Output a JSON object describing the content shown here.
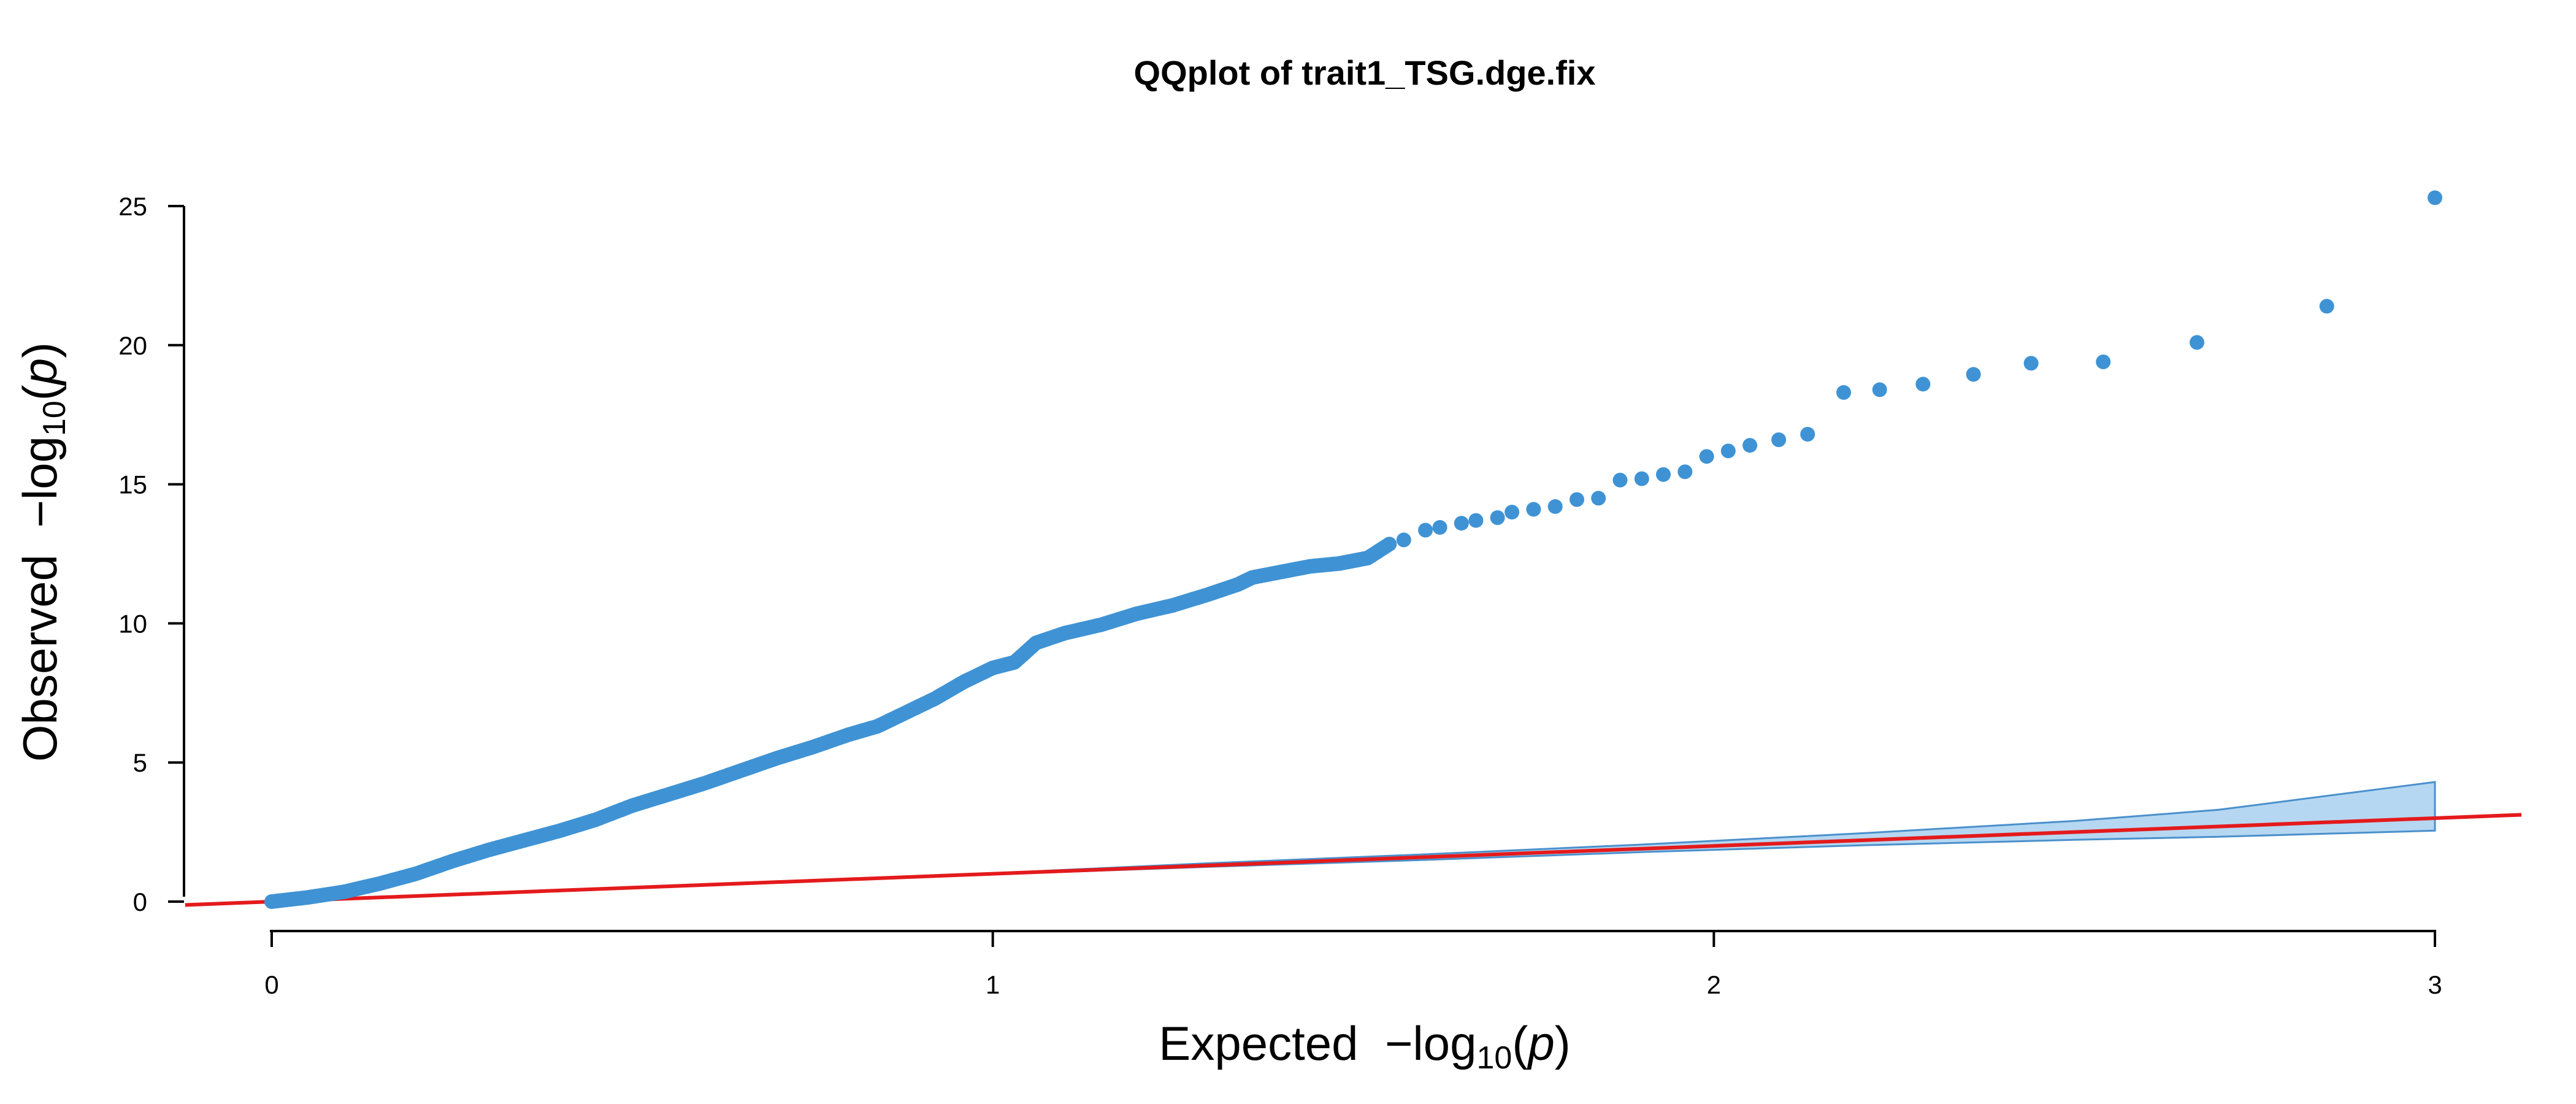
{
  "chart_data": {
    "type": "scatter",
    "title": "QQplot of trait1_TSG.dge.fix",
    "xlabel": "Expected  −log10(p)",
    "ylabel": "Observed  −log10(p)",
    "xlim": [
      0,
      3
    ],
    "ylim": [
      0,
      25
    ],
    "xticks": [
      0,
      1,
      2,
      3
    ],
    "yticks": [
      0,
      5,
      10,
      15,
      20,
      25
    ],
    "colors": {
      "points": "#3f93d4",
      "reference_line": "#e41a1c",
      "band_fill": "#b6d7f1",
      "band_stroke": "#4a90cc"
    },
    "reference_line": {
      "slope": 1,
      "intercept": 0
    },
    "confidence_band": {
      "x": [
        1.0,
        1.3,
        1.6,
        1.9,
        2.2,
        2.5,
        2.7,
        3.0
      ],
      "lower": [
        0.98,
        1.25,
        1.5,
        1.78,
        2.02,
        2.22,
        2.33,
        2.55
      ],
      "upper": [
        1.02,
        1.38,
        1.7,
        2.05,
        2.45,
        2.9,
        3.3,
        4.3
      ]
    },
    "series": [
      {
        "type": "dense_curve",
        "points": [
          [
            0,
            0
          ],
          [
            0.05,
            0.15
          ],
          [
            0.1,
            0.35
          ],
          [
            0.15,
            0.65
          ],
          [
            0.2,
            1.0
          ],
          [
            0.25,
            1.45
          ],
          [
            0.3,
            1.85
          ],
          [
            0.35,
            2.2
          ],
          [
            0.4,
            2.55
          ],
          [
            0.45,
            2.95
          ],
          [
            0.5,
            3.45
          ],
          [
            0.55,
            3.85
          ],
          [
            0.6,
            4.25
          ],
          [
            0.65,
            4.7
          ],
          [
            0.7,
            5.15
          ],
          [
            0.75,
            5.55
          ],
          [
            0.8,
            6.0
          ],
          [
            0.84,
            6.3
          ],
          [
            0.88,
            6.8
          ],
          [
            0.92,
            7.3
          ],
          [
            0.96,
            7.9
          ],
          [
            1.0,
            8.4
          ],
          [
            1.03,
            8.6
          ],
          [
            1.06,
            9.3
          ],
          [
            1.1,
            9.65
          ],
          [
            1.15,
            9.95
          ],
          [
            1.2,
            10.35
          ],
          [
            1.25,
            10.65
          ],
          [
            1.3,
            11.05
          ],
          [
            1.34,
            11.4
          ],
          [
            1.36,
            11.65
          ],
          [
            1.4,
            11.85
          ],
          [
            1.44,
            12.05
          ],
          [
            1.48,
            12.15
          ],
          [
            1.5,
            12.25
          ],
          [
            1.52,
            12.35
          ],
          [
            1.55,
            12.85
          ]
        ]
      },
      {
        "type": "points",
        "points": [
          [
            1.57,
            13.0
          ],
          [
            1.6,
            13.35
          ],
          [
            1.62,
            13.45
          ],
          [
            1.65,
            13.6
          ],
          [
            1.67,
            13.7
          ],
          [
            1.7,
            13.8
          ],
          [
            1.72,
            14.0
          ],
          [
            1.75,
            14.1
          ],
          [
            1.78,
            14.2
          ],
          [
            1.81,
            14.45
          ],
          [
            1.84,
            14.5
          ],
          [
            1.87,
            15.15
          ],
          [
            1.9,
            15.2
          ],
          [
            1.93,
            15.35
          ],
          [
            1.96,
            15.45
          ],
          [
            1.99,
            16.0
          ],
          [
            2.02,
            16.2
          ],
          [
            2.05,
            16.4
          ],
          [
            2.09,
            16.6
          ],
          [
            2.13,
            16.8
          ],
          [
            2.18,
            18.3
          ],
          [
            2.23,
            18.4
          ],
          [
            2.29,
            18.6
          ],
          [
            2.36,
            18.95
          ],
          [
            2.44,
            19.35
          ],
          [
            2.54,
            19.4
          ],
          [
            2.67,
            20.1
          ],
          [
            2.85,
            21.4
          ],
          [
            3.0,
            25.3
          ]
        ]
      }
    ]
  }
}
